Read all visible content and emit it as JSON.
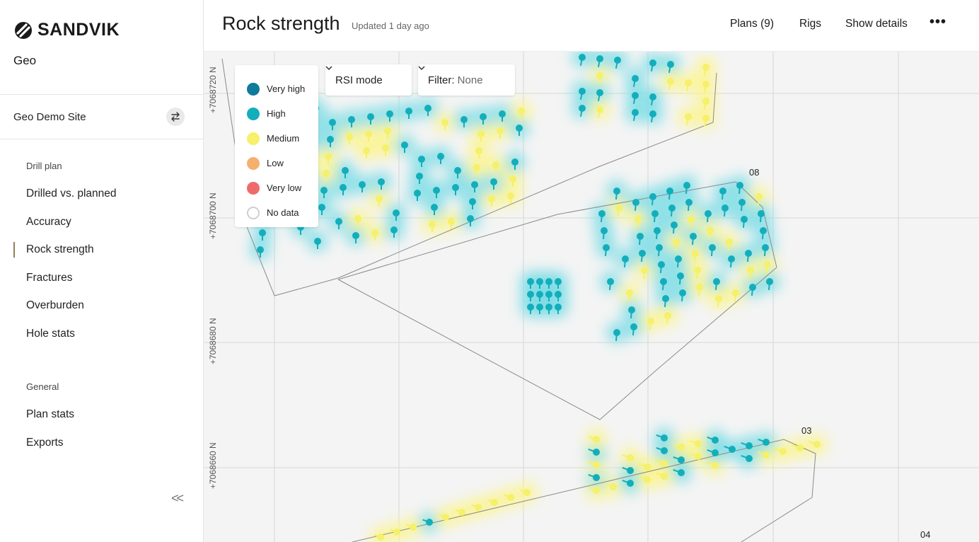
{
  "brand": {
    "name": "SANDVIK",
    "logo_icon": "sandvik-logo-icon"
  },
  "sidebar": {
    "app_name": "Geo",
    "site": {
      "name": "Geo Demo Site",
      "switch_icon": "swap-icon"
    },
    "sections": [
      {
        "label": "Drill plan",
        "items": [
          {
            "label": "Drilled vs. planned",
            "active": false
          },
          {
            "label": "Accuracy",
            "active": false
          },
          {
            "label": "Rock strength",
            "active": true
          },
          {
            "label": "Fractures",
            "active": false
          },
          {
            "label": "Overburden",
            "active": false
          },
          {
            "label": "Hole stats",
            "active": false
          }
        ]
      },
      {
        "label": "General",
        "items": [
          {
            "label": "Plan stats",
            "active": false
          },
          {
            "label": "Exports",
            "active": false
          }
        ]
      }
    ],
    "collapse_label": "<<"
  },
  "header": {
    "title": "Rock strength",
    "updated": "Updated 1 day ago",
    "links": [
      "Plans (9)",
      "Rigs",
      "Show details"
    ],
    "more_label": "•••"
  },
  "map": {
    "legend": [
      {
        "label": "Very high",
        "color": "#0e7a9c"
      },
      {
        "label": "High",
        "color": "#13aebb"
      },
      {
        "label": "Medium",
        "color": "#f6f06a"
      },
      {
        "label": "Low",
        "color": "#f5b06e"
      },
      {
        "label": "Very low",
        "color": "#ef6b6b"
      },
      {
        "label": "No data",
        "color": "#ffffff"
      }
    ],
    "mode_select": {
      "value": "RSI mode"
    },
    "filter_select": {
      "prefix": "Filter:",
      "value": "None"
    },
    "northing_labels": [
      "+7068720 N",
      "+7068700 N",
      "+7068680 N",
      "+7068660 N"
    ],
    "plan_labels": [
      "08",
      "03",
      "04"
    ],
    "colors": {
      "high": "#13aebb",
      "medium": "#f6f06a",
      "halo_high": "#7fdde6",
      "halo_medium": "#fbf48e"
    }
  }
}
